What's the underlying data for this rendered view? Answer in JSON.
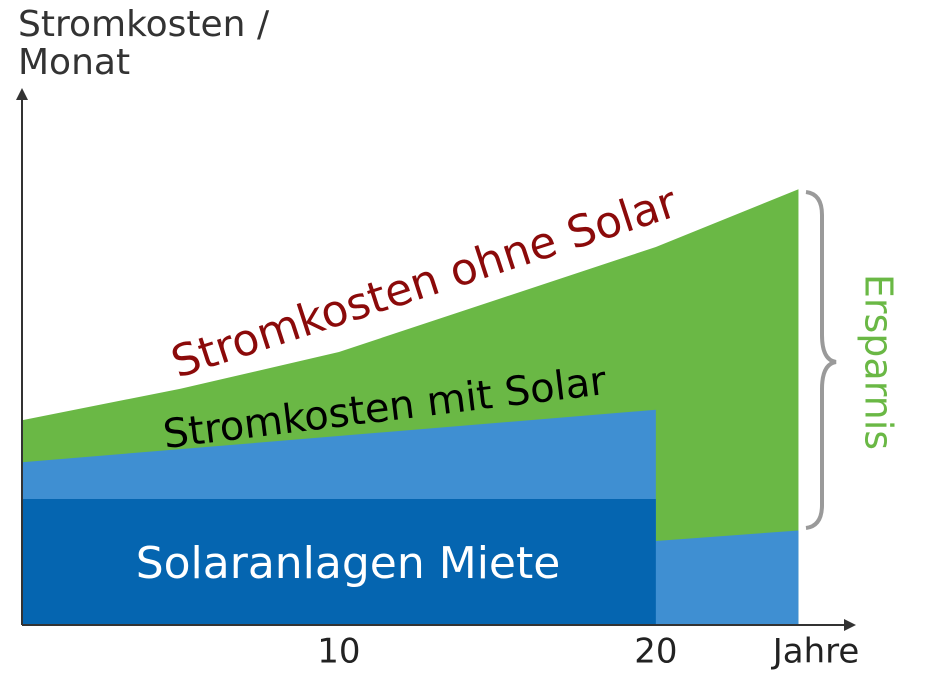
{
  "chart_data": {
    "type": "area",
    "ylabel": "Stromkosten / Monat",
    "xlabel": "Jahre",
    "annotation": "Ersparnis",
    "xlim": [
      0,
      26
    ],
    "xticks": [
      10,
      20
    ],
    "ylim": [
      0,
      100
    ],
    "series": [
      {
        "name": "Stromkosten ohne Solar",
        "color": "#6ab845",
        "label_color": "#8b0a0a",
        "x": [
          0,
          5,
          10,
          15,
          20,
          24.5
        ],
        "values": [
          39,
          45,
          52,
          62,
          72,
          83
        ]
      },
      {
        "name": "Stromkosten mit Solar",
        "color": "#3f8fd2",
        "label_color": "#000000",
        "x": [
          0,
          20,
          20,
          24.5
        ],
        "values": [
          31,
          41,
          16,
          18
        ]
      },
      {
        "name": "Solaranlagen Miete",
        "color": "#0565b0",
        "label_color": "#ffffff",
        "x": [
          0,
          20
        ],
        "values": [
          24,
          24
        ]
      }
    ]
  }
}
